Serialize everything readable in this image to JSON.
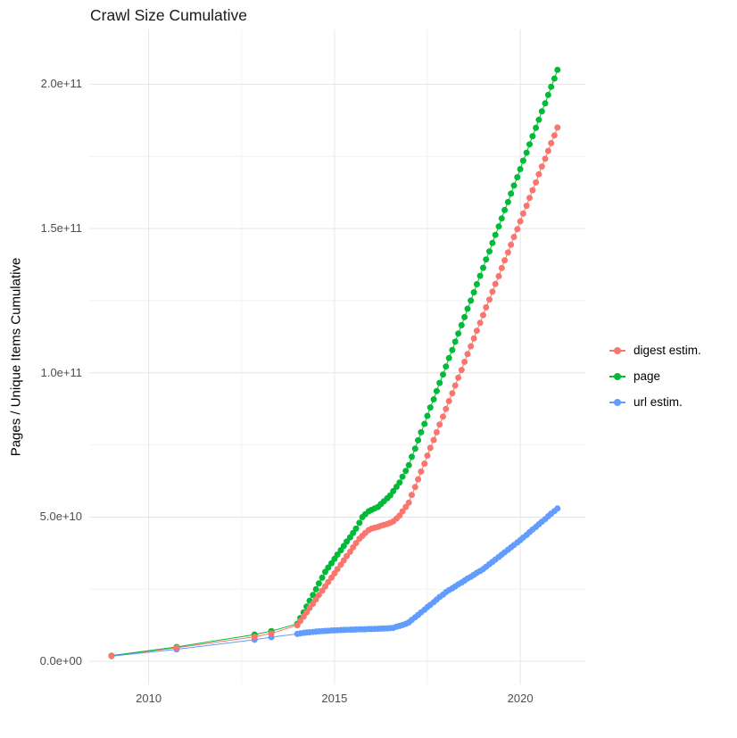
{
  "chart_data": {
    "type": "scatter",
    "title": "Crawl Size Cumulative",
    "xlabel": "",
    "ylabel": "Pages / Unique Items Cumulative",
    "y_unit": "1e9 (values below are billions; axis labels shown in scientific notation)",
    "xlim": [
      2008.4,
      2021.75
    ],
    "ylim": [
      -8,
      219
    ],
    "legend_position": "right",
    "x_ticks": [
      {
        "value": 2010,
        "label": "2010"
      },
      {
        "value": 2015,
        "label": "2015"
      },
      {
        "value": 2020,
        "label": "2020"
      }
    ],
    "y_ticks": [
      {
        "value": 0,
        "label": "0.0e+00"
      },
      {
        "value": 50,
        "label": "5.0e+10"
      },
      {
        "value": 100,
        "label": "1.0e+11"
      },
      {
        "value": 150,
        "label": "1.5e+11"
      },
      {
        "value": 200,
        "label": "2.0e+11"
      }
    ],
    "grid": {
      "major_color": "#e6e6e6",
      "minor_color": "#f2f2f2",
      "x_minor": [
        2012.5,
        2017.5
      ],
      "y_minor": [
        25,
        75,
        125,
        175
      ]
    },
    "series": [
      {
        "id": "digest-estim",
        "name": "digest estim.",
        "color": "#F8766D",
        "points": [
          [
            2009.0,
            1.9
          ],
          [
            2010.75,
            4.7
          ],
          [
            2012.85,
            8.5
          ],
          [
            2013.3,
            9.7
          ],
          [
            2014.0,
            12.5
          ],
          [
            2014.08,
            14.0
          ],
          [
            2014.17,
            15.5
          ],
          [
            2014.25,
            17.0
          ],
          [
            2014.33,
            18.5
          ],
          [
            2014.42,
            20.0
          ],
          [
            2014.5,
            21.5
          ],
          [
            2014.58,
            23.0
          ],
          [
            2014.67,
            24.5
          ],
          [
            2014.75,
            26.0
          ],
          [
            2014.83,
            27.5
          ],
          [
            2014.92,
            29.0
          ],
          [
            2015.0,
            30.5
          ],
          [
            2015.08,
            32.0
          ],
          [
            2015.17,
            33.5
          ],
          [
            2015.25,
            35.0
          ],
          [
            2015.33,
            36.5
          ],
          [
            2015.42,
            38.0
          ],
          [
            2015.5,
            39.5
          ],
          [
            2015.58,
            41.0
          ],
          [
            2015.67,
            42.5
          ],
          [
            2015.75,
            43.5
          ],
          [
            2015.83,
            44.5
          ],
          [
            2015.92,
            45.5
          ],
          [
            2016.0,
            46.0
          ],
          [
            2016.08,
            46.3
          ],
          [
            2016.17,
            46.6
          ],
          [
            2016.25,
            47.0
          ],
          [
            2016.33,
            47.3
          ],
          [
            2016.42,
            47.6
          ],
          [
            2016.5,
            48.0
          ],
          [
            2016.58,
            48.5
          ],
          [
            2016.67,
            49.5
          ],
          [
            2016.75,
            50.5
          ],
          [
            2016.83,
            52.0
          ],
          [
            2016.92,
            53.5
          ],
          [
            2017.0,
            55.0
          ],
          [
            2017.08,
            57.7
          ],
          [
            2017.17,
            60.4
          ],
          [
            2017.25,
            63.1
          ],
          [
            2017.33,
            65.8
          ],
          [
            2017.42,
            68.5
          ],
          [
            2017.5,
            71.3
          ],
          [
            2017.58,
            74.0
          ],
          [
            2017.67,
            76.7
          ],
          [
            2017.75,
            79.4
          ],
          [
            2017.83,
            82.1
          ],
          [
            2017.92,
            84.8
          ],
          [
            2018.0,
            87.5
          ],
          [
            2018.08,
            90.2
          ],
          [
            2018.17,
            92.9
          ],
          [
            2018.25,
            95.6
          ],
          [
            2018.33,
            98.3
          ],
          [
            2018.42,
            101.0
          ],
          [
            2018.5,
            103.8
          ],
          [
            2018.58,
            106.5
          ],
          [
            2018.67,
            109.2
          ],
          [
            2018.75,
            111.9
          ],
          [
            2018.83,
            114.6
          ],
          [
            2018.92,
            117.3
          ],
          [
            2019.0,
            120.0
          ],
          [
            2019.08,
            122.7
          ],
          [
            2019.17,
            125.4
          ],
          [
            2019.25,
            128.1
          ],
          [
            2019.33,
            130.8
          ],
          [
            2019.42,
            133.5
          ],
          [
            2019.5,
            136.3
          ],
          [
            2019.58,
            139.0
          ],
          [
            2019.67,
            141.7
          ],
          [
            2019.75,
            144.4
          ],
          [
            2019.83,
            147.1
          ],
          [
            2019.92,
            149.8
          ],
          [
            2020.0,
            152.5
          ],
          [
            2020.08,
            155.2
          ],
          [
            2020.17,
            157.9
          ],
          [
            2020.25,
            160.6
          ],
          [
            2020.33,
            163.3
          ],
          [
            2020.42,
            166.0
          ],
          [
            2020.5,
            168.8
          ],
          [
            2020.58,
            171.5
          ],
          [
            2020.67,
            174.2
          ],
          [
            2020.75,
            176.9
          ],
          [
            2020.83,
            179.6
          ],
          [
            2020.92,
            182.3
          ],
          [
            2021.0,
            185.0
          ]
        ]
      },
      {
        "id": "page",
        "name": "page",
        "color": "#00BA38",
        "points": [
          [
            2009.0,
            2.0
          ],
          [
            2010.75,
            5.0
          ],
          [
            2012.85,
            9.3
          ],
          [
            2013.3,
            10.5
          ],
          [
            2014.0,
            13.0
          ],
          [
            2014.08,
            15.0
          ],
          [
            2014.17,
            17.0
          ],
          [
            2014.25,
            19.0
          ],
          [
            2014.33,
            21.0
          ],
          [
            2014.42,
            23.0
          ],
          [
            2014.5,
            25.0
          ],
          [
            2014.58,
            27.0
          ],
          [
            2014.67,
            29.0
          ],
          [
            2014.75,
            31.0
          ],
          [
            2014.83,
            32.5
          ],
          [
            2014.92,
            34.0
          ],
          [
            2015.0,
            35.5
          ],
          [
            2015.08,
            37.0
          ],
          [
            2015.17,
            38.5
          ],
          [
            2015.25,
            40.0
          ],
          [
            2015.33,
            41.5
          ],
          [
            2015.42,
            43.0
          ],
          [
            2015.5,
            44.5
          ],
          [
            2015.58,
            46.0
          ],
          [
            2015.67,
            48.0
          ],
          [
            2015.75,
            50.0
          ],
          [
            2015.83,
            51.0
          ],
          [
            2015.92,
            52.0
          ],
          [
            2016.0,
            52.5
          ],
          [
            2016.08,
            53.0
          ],
          [
            2016.17,
            53.5
          ],
          [
            2016.25,
            54.5
          ],
          [
            2016.33,
            55.5
          ],
          [
            2016.42,
            56.5
          ],
          [
            2016.5,
            57.5
          ],
          [
            2016.58,
            59.0
          ],
          [
            2016.67,
            60.5
          ],
          [
            2016.75,
            62.0
          ],
          [
            2016.83,
            64.0
          ],
          [
            2016.92,
            66.0
          ],
          [
            2017.0,
            68.0
          ],
          [
            2017.08,
            70.9
          ],
          [
            2017.17,
            73.7
          ],
          [
            2017.25,
            76.6
          ],
          [
            2017.33,
            79.4
          ],
          [
            2017.42,
            82.3
          ],
          [
            2017.5,
            85.1
          ],
          [
            2017.58,
            88.0
          ],
          [
            2017.67,
            90.8
          ],
          [
            2017.75,
            93.7
          ],
          [
            2017.83,
            96.5
          ],
          [
            2017.92,
            99.4
          ],
          [
            2018.0,
            102.2
          ],
          [
            2018.08,
            105.1
          ],
          [
            2018.17,
            107.9
          ],
          [
            2018.25,
            110.8
          ],
          [
            2018.33,
            113.6
          ],
          [
            2018.42,
            116.5
          ],
          [
            2018.5,
            119.3
          ],
          [
            2018.58,
            122.2
          ],
          [
            2018.67,
            125.0
          ],
          [
            2018.75,
            127.9
          ],
          [
            2018.83,
            130.7
          ],
          [
            2018.92,
            133.6
          ],
          [
            2019.0,
            136.4
          ],
          [
            2019.08,
            139.3
          ],
          [
            2019.17,
            142.1
          ],
          [
            2019.25,
            145.0
          ],
          [
            2019.33,
            147.8
          ],
          [
            2019.42,
            150.7
          ],
          [
            2019.5,
            153.5
          ],
          [
            2019.58,
            156.4
          ],
          [
            2019.67,
            159.2
          ],
          [
            2019.75,
            162.1
          ],
          [
            2019.83,
            164.9
          ],
          [
            2019.92,
            167.8
          ],
          [
            2020.0,
            170.6
          ],
          [
            2020.08,
            173.5
          ],
          [
            2020.17,
            176.3
          ],
          [
            2020.25,
            179.2
          ],
          [
            2020.33,
            182.0
          ],
          [
            2020.42,
            184.9
          ],
          [
            2020.5,
            187.7
          ],
          [
            2020.58,
            190.6
          ],
          [
            2020.67,
            193.4
          ],
          [
            2020.75,
            196.3
          ],
          [
            2020.83,
            199.1
          ],
          [
            2020.92,
            202.0
          ],
          [
            2021.0,
            205.0
          ]
        ]
      },
      {
        "id": "url-estim",
        "name": "url estim.",
        "color": "#619CFF",
        "points": [
          [
            2009.0,
            1.8
          ],
          [
            2010.75,
            4.2
          ],
          [
            2012.85,
            7.5
          ],
          [
            2013.3,
            8.4
          ],
          [
            2014.0,
            9.5
          ],
          [
            2014.08,
            9.7
          ],
          [
            2014.17,
            9.9
          ],
          [
            2014.25,
            10.0
          ],
          [
            2014.33,
            10.1
          ],
          [
            2014.42,
            10.2
          ],
          [
            2014.5,
            10.3
          ],
          [
            2014.58,
            10.4
          ],
          [
            2014.67,
            10.5
          ],
          [
            2014.75,
            10.55
          ],
          [
            2014.83,
            10.6
          ],
          [
            2014.92,
            10.7
          ],
          [
            2015.0,
            10.75
          ],
          [
            2015.08,
            10.8
          ],
          [
            2015.17,
            10.85
          ],
          [
            2015.25,
            10.9
          ],
          [
            2015.33,
            10.95
          ],
          [
            2015.42,
            11.0
          ],
          [
            2015.5,
            11.0
          ],
          [
            2015.58,
            11.05
          ],
          [
            2015.67,
            11.1
          ],
          [
            2015.75,
            11.1
          ],
          [
            2015.83,
            11.15
          ],
          [
            2015.92,
            11.2
          ],
          [
            2016.0,
            11.2
          ],
          [
            2016.08,
            11.25
          ],
          [
            2016.17,
            11.3
          ],
          [
            2016.25,
            11.35
          ],
          [
            2016.33,
            11.4
          ],
          [
            2016.42,
            11.45
          ],
          [
            2016.5,
            11.5
          ],
          [
            2016.58,
            11.6
          ],
          [
            2016.67,
            12.0
          ],
          [
            2016.75,
            12.3
          ],
          [
            2016.83,
            12.6
          ],
          [
            2016.92,
            13.0
          ],
          [
            2017.0,
            13.5
          ],
          [
            2017.08,
            14.4
          ],
          [
            2017.17,
            15.3
          ],
          [
            2017.25,
            16.1
          ],
          [
            2017.33,
            17.0
          ],
          [
            2017.42,
            17.9
          ],
          [
            2017.5,
            18.8
          ],
          [
            2017.58,
            19.6
          ],
          [
            2017.67,
            20.5
          ],
          [
            2017.75,
            21.4
          ],
          [
            2017.83,
            22.3
          ],
          [
            2017.92,
            23.1
          ],
          [
            2018.0,
            24.0
          ],
          [
            2018.08,
            24.7
          ],
          [
            2018.17,
            25.3
          ],
          [
            2018.25,
            26.0
          ],
          [
            2018.33,
            26.7
          ],
          [
            2018.42,
            27.3
          ],
          [
            2018.5,
            28.0
          ],
          [
            2018.58,
            28.7
          ],
          [
            2018.67,
            29.3
          ],
          [
            2018.75,
            30.0
          ],
          [
            2018.83,
            30.7
          ],
          [
            2018.92,
            31.3
          ],
          [
            2019.0,
            32.0
          ],
          [
            2019.08,
            32.8
          ],
          [
            2019.17,
            33.7
          ],
          [
            2019.25,
            34.5
          ],
          [
            2019.33,
            35.3
          ],
          [
            2019.42,
            36.2
          ],
          [
            2019.5,
            37.0
          ],
          [
            2019.58,
            37.8
          ],
          [
            2019.67,
            38.7
          ],
          [
            2019.75,
            39.5
          ],
          [
            2019.83,
            40.3
          ],
          [
            2019.92,
            41.2
          ],
          [
            2020.0,
            42.0
          ],
          [
            2020.08,
            42.9
          ],
          [
            2020.17,
            43.8
          ],
          [
            2020.25,
            44.8
          ],
          [
            2020.33,
            45.7
          ],
          [
            2020.42,
            46.6
          ],
          [
            2020.5,
            47.5
          ],
          [
            2020.58,
            48.4
          ],
          [
            2020.67,
            49.3
          ],
          [
            2020.75,
            50.3
          ],
          [
            2020.83,
            51.2
          ],
          [
            2020.92,
            52.1
          ],
          [
            2021.0,
            53.0
          ]
        ]
      }
    ]
  }
}
